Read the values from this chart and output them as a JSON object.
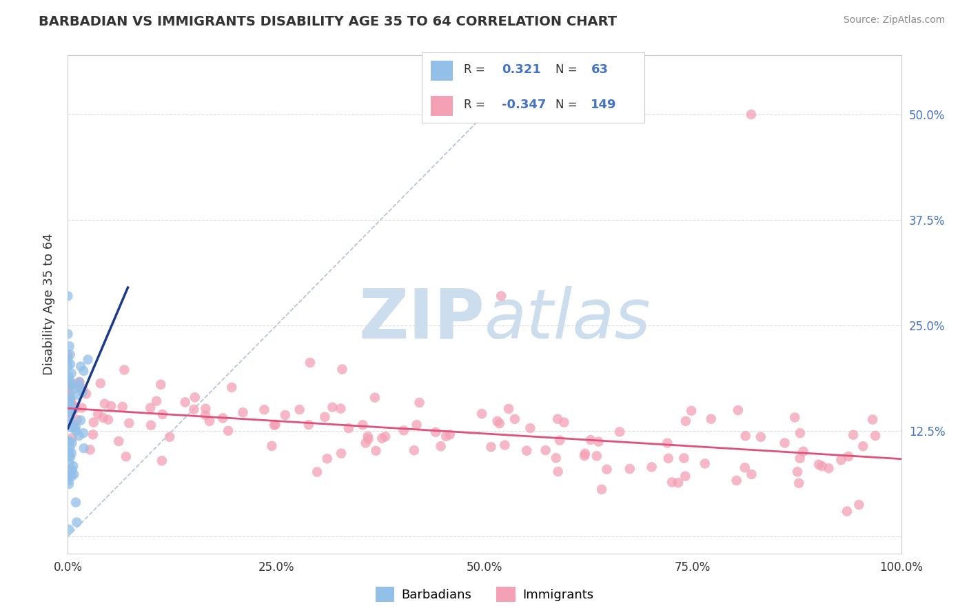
{
  "title": "BARBADIAN VS IMMIGRANTS DISABILITY AGE 35 TO 64 CORRELATION CHART",
  "source": "Source: ZipAtlas.com",
  "xlabel_barbadians": "Barbadians",
  "xlabel_immigrants": "Immigrants",
  "ylabel": "Disability Age 35 to 64",
  "xlim": [
    0.0,
    1.0
  ],
  "ylim": [
    -0.02,
    0.57
  ],
  "xtick_vals": [
    0.0,
    0.25,
    0.5,
    0.75,
    1.0
  ],
  "xtick_labels": [
    "0.0%",
    "25.0%",
    "50.0%",
    "75.0%",
    "100.0%"
  ],
  "ytick_vals": [
    0.0,
    0.125,
    0.25,
    0.375,
    0.5
  ],
  "ytick_labels": [
    "",
    "12.5%",
    "25.0%",
    "37.5%",
    "50.0%"
  ],
  "blue_color": "#92C0E8",
  "pink_color": "#F4A0B5",
  "blue_line_color": "#1A3A8A",
  "pink_line_color": "#E0507A",
  "diag_color": "#AABBD0",
  "watermark_color": "#CCDDEE",
  "background_color": "#FFFFFF",
  "grid_color": "#DDDDDD",
  "title_color": "#333333",
  "source_color": "#888888",
  "ytick_color": "#4472C4",
  "blue_r": "0.321",
  "blue_n": "63",
  "pink_r": "-0.347",
  "pink_n": "149",
  "blue_line_x0": 0.0,
  "blue_line_x1": 0.072,
  "blue_line_y0": 0.128,
  "blue_line_y1": 0.295,
  "pink_line_x0": 0.0,
  "pink_line_x1": 1.0,
  "pink_line_y0": 0.152,
  "pink_line_y1": 0.092
}
